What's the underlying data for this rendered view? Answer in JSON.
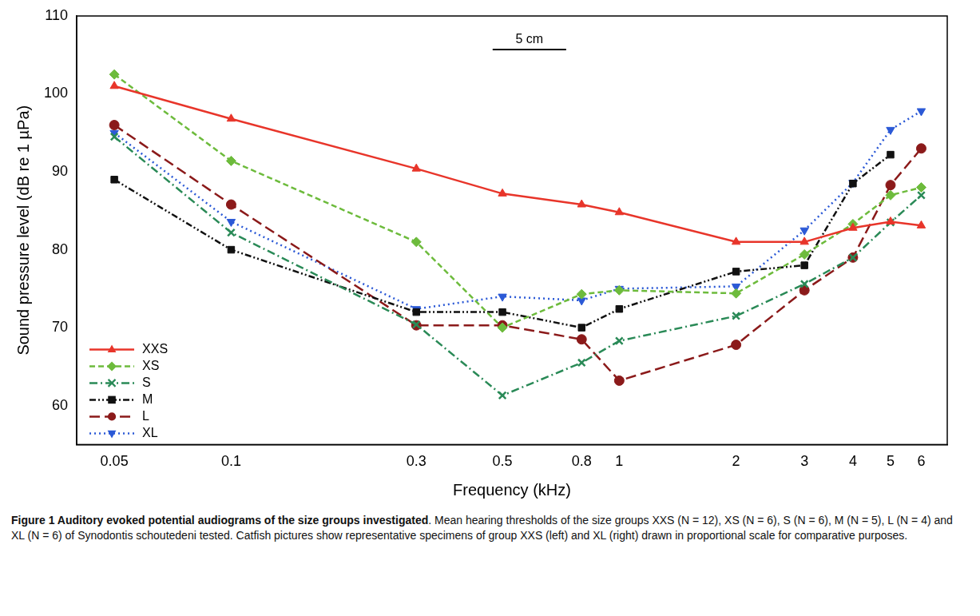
{
  "chart_data": {
    "type": "line",
    "title": "Figure 1 Auditory evoked potential audiograms of the size groups investigated",
    "subtitle": "Mean hearing thresholds of the size groups XXS (N = 12), XS (N = 6), S (N = 6), M (N = 5), L (N = 4) and XL (N = 6) of Synodontis schoutedeni tested. Catfish pictures show representative specimens of group XXS (left) and XL (right) drawn in proportional scale for comparative purposes.",
    "x_label": "Frequency (kHz)",
    "y_label": "Sound pressure level (dB re 1 µPa)",
    "annotations": [
      "5 cm"
    ],
    "x": [
      0.05,
      0.1,
      0.3,
      0.5,
      0.8,
      1,
      2,
      3,
      4,
      5,
      6
    ],
    "series": [
      {
        "name": "XXS",
        "color": "#e8352a",
        "marker": "triangle",
        "line_style": "solid",
        "values": [
          101,
          96.8,
          90.4,
          87.2,
          85.8,
          84.8,
          81,
          81,
          82.8,
          83.6,
          83.1
        ]
      },
      {
        "name": "XS",
        "color": "#6dbb3c",
        "marker": "diamond",
        "line_style": "dashed",
        "values": [
          102.5,
          91.4,
          81,
          70,
          74.3,
          74.8,
          74.4,
          79.4,
          83.3,
          87,
          88
        ]
      },
      {
        "name": "S",
        "color": "#2a8a57",
        "marker": "cross",
        "line_style": "dashdot",
        "values": [
          94.5,
          82.2,
          70.4,
          61.3,
          65.5,
          68.3,
          71.5,
          75.6,
          79,
          83.5,
          87
        ]
      },
      {
        "name": "M",
        "color": "#111111",
        "marker": "square",
        "line_style": "dashdotdot",
        "values": [
          89,
          80,
          72,
          72,
          70,
          72.4,
          77.2,
          78,
          88.5,
          92.2,
          null
        ]
      },
      {
        "name": "L",
        "color": "#8b1a1a",
        "marker": "circle",
        "line_style": "longdash",
        "values": [
          96,
          85.8,
          70.3,
          70.3,
          68.5,
          63.2,
          67.8,
          74.8,
          79,
          88.3,
          93
        ]
      },
      {
        "name": "XL",
        "color": "#2b59d6",
        "marker": "triangle-down",
        "line_style": "dotted",
        "values": [
          95,
          83.6,
          72.4,
          74,
          73.5,
          75,
          75.3,
          82.5,
          88.6,
          95.4,
          97.8
        ]
      }
    ],
    "log": "x",
    "xlim": [
      0.04,
      7
    ],
    "xticks": [
      0.05,
      0.1,
      0.3,
      0.5,
      0.8,
      1,
      2,
      3,
      4,
      5,
      6
    ],
    "ylim": [
      55,
      110
    ],
    "yticks": [
      60,
      70,
      80,
      90,
      100,
      110
    ],
    "grid": false,
    "legend": "lower left"
  }
}
